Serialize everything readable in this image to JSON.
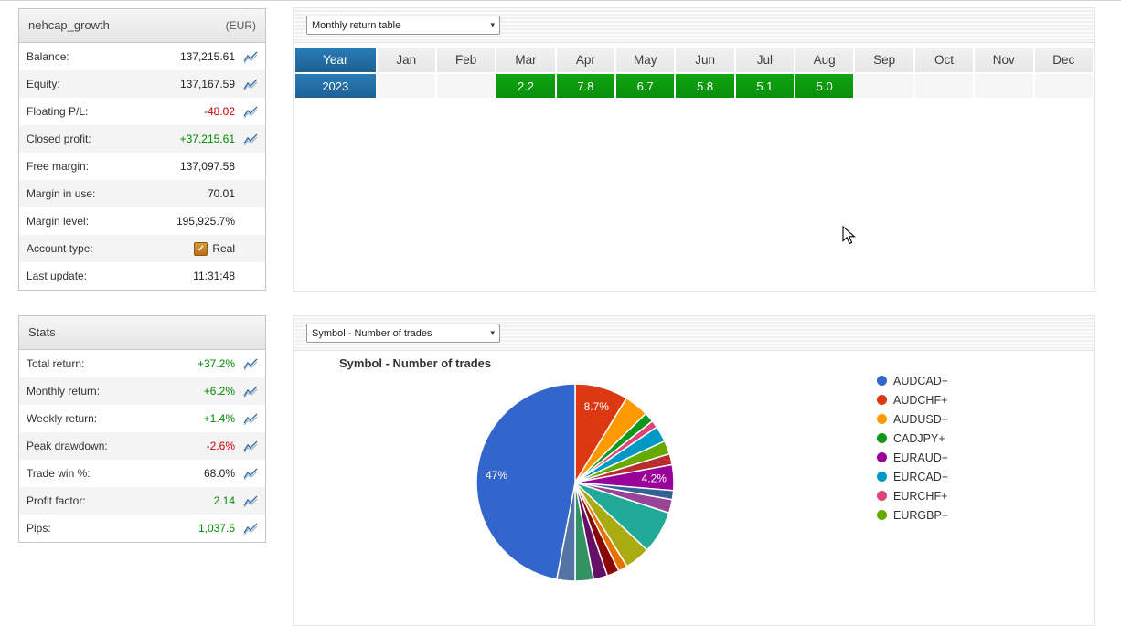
{
  "account_panel": {
    "title": "nehcap_growth",
    "currency": "(EUR)",
    "rows": [
      {
        "label": "Balance:",
        "value": "137,215.61",
        "color": "default",
        "icon": true,
        "checkbox": false
      },
      {
        "label": "Equity:",
        "value": "137,167.59",
        "color": "default",
        "icon": true,
        "checkbox": false
      },
      {
        "label": "Floating P/L:",
        "value": "-48.02",
        "color": "red",
        "icon": true,
        "checkbox": false
      },
      {
        "label": "Closed profit:",
        "value": "+37,215.61",
        "color": "green",
        "icon": true,
        "checkbox": false
      },
      {
        "label": "Free margin:",
        "value": "137,097.58",
        "color": "default",
        "icon": false,
        "checkbox": false
      },
      {
        "label": "Margin in use:",
        "value": "70.01",
        "color": "default",
        "icon": false,
        "checkbox": false
      },
      {
        "label": "Margin level:",
        "value": "195,925.7%",
        "color": "default",
        "icon": false,
        "checkbox": false
      },
      {
        "label": "Account type:",
        "value": "Real",
        "color": "default",
        "icon": false,
        "checkbox": true
      },
      {
        "label": "Last update:",
        "value": "11:31:48",
        "color": "default",
        "icon": false,
        "checkbox": false
      }
    ]
  },
  "stats_panel": {
    "title": "Stats",
    "rows": [
      {
        "label": "Total return:",
        "value": "+37.2%",
        "color": "green",
        "icon": true,
        "checkbox": false
      },
      {
        "label": "Monthly return:",
        "value": "+6.2%",
        "color": "green",
        "icon": true,
        "checkbox": false
      },
      {
        "label": "Weekly return:",
        "value": "+1.4%",
        "color": "green",
        "icon": true,
        "checkbox": false
      },
      {
        "label": "Peak drawdown:",
        "value": "-2.6%",
        "color": "red",
        "icon": true,
        "checkbox": false
      },
      {
        "label": "Trade win %:",
        "value": "68.0%",
        "color": "default",
        "icon": true,
        "checkbox": false
      },
      {
        "label": "Profit factor:",
        "value": "2.14",
        "color": "green",
        "icon": true,
        "checkbox": false
      },
      {
        "label": "Pips:",
        "value": "1,037.5",
        "color": "green",
        "icon": true,
        "checkbox": false
      }
    ]
  },
  "monthly_panel": {
    "dropdown_value": "Monthly return table"
  },
  "trades_panel": {
    "dropdown_value": "Symbol - Number of trades"
  },
  "chart_data": [
    {
      "type": "table",
      "title": "Monthly return table",
      "columns": [
        "Year",
        "Jan",
        "Feb",
        "Mar",
        "Apr",
        "May",
        "Jun",
        "Jul",
        "Aug",
        "Sep",
        "Oct",
        "Nov",
        "Dec"
      ],
      "rows": [
        {
          "year": "2023",
          "values": [
            "",
            "",
            "2.2",
            "7.8",
            "6.7",
            "5.8",
            "5.1",
            "5.0",
            "",
            "",
            "",
            ""
          ]
        }
      ]
    },
    {
      "type": "pie",
      "title": "Symbol - Number of trades",
      "legend_position": "right",
      "legend": [
        {
          "name": "AUDCAD+",
          "color": "#3366cc"
        },
        {
          "name": "AUDCHF+",
          "color": "#dc3912"
        },
        {
          "name": "AUDUSD+",
          "color": "#ff9900"
        },
        {
          "name": "CADJPY+",
          "color": "#109618"
        },
        {
          "name": "EURAUD+",
          "color": "#990099"
        },
        {
          "name": "EURCAD+",
          "color": "#0099c6"
        },
        {
          "name": "EURCHF+",
          "color": "#dd4477"
        },
        {
          "name": "EURGBP+",
          "color": "#66aa00"
        }
      ],
      "slices": [
        {
          "symbol": "AUDCHF+",
          "value": 8.7,
          "color": "#dc3912",
          "label": "8.7%"
        },
        {
          "symbol": "AUDUSD+",
          "value": 4.0,
          "color": "#ff9900",
          "label": ""
        },
        {
          "symbol": "CADJPY+",
          "value": 1.6,
          "color": "#109618",
          "label": ""
        },
        {
          "symbol": "EURCHF+",
          "value": 1.2,
          "color": "#dd4477",
          "label": ""
        },
        {
          "symbol": "EURCAD+",
          "value": 2.6,
          "color": "#0099c6",
          "label": ""
        },
        {
          "symbol": "EURGBP+",
          "value": 2.2,
          "color": "#66aa00",
          "label": ""
        },
        {
          "symbol": "",
          "value": 1.8,
          "color": "#b82e2e",
          "label": ""
        },
        {
          "symbol": "EURAUD+",
          "value": 4.2,
          "color": "#990099",
          "label": "4.2%"
        },
        {
          "symbol": "",
          "value": 1.5,
          "color": "#316395",
          "label": ""
        },
        {
          "symbol": "",
          "value": 2.2,
          "color": "#994499",
          "label": ""
        },
        {
          "symbol": "",
          "value": 7.0,
          "color": "#22aa99",
          "label": ""
        },
        {
          "symbol": "",
          "value": 4.2,
          "color": "#aaaa11",
          "label": ""
        },
        {
          "symbol": "",
          "value": 1.5,
          "color": "#e67300",
          "label": ""
        },
        {
          "symbol": "",
          "value": 2.0,
          "color": "#8b0707",
          "label": ""
        },
        {
          "symbol": "",
          "value": 2.3,
          "color": "#651067",
          "label": ""
        },
        {
          "symbol": "",
          "value": 3.0,
          "color": "#329262",
          "label": ""
        },
        {
          "symbol": "",
          "value": 3.0,
          "color": "#5574a6",
          "label": ""
        },
        {
          "symbol": "AUDCAD+",
          "value": 47.0,
          "color": "#3366cc",
          "label": "47%"
        }
      ]
    }
  ]
}
